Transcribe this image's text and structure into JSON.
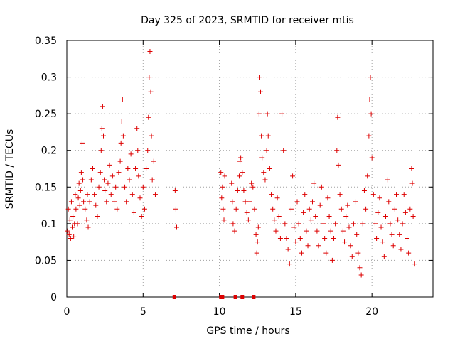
{
  "chart_data": {
    "type": "scatter",
    "title": "Day 325 of 2023, SRMTID for receiver mtis",
    "xlabel": "GPS time / hours",
    "ylabel": "SRMTID / TECUs",
    "xlim": [
      0,
      24
    ],
    "ylim": [
      0,
      0.35
    ],
    "xticks": [
      0,
      5,
      10,
      15,
      20
    ],
    "xtick_labels": [
      "0",
      "5",
      "10",
      "15",
      "20"
    ],
    "yticks": [
      0,
      0.05,
      0.1,
      0.15,
      0.2,
      0.25,
      0.3,
      0.35
    ],
    "ytick_labels": [
      "0",
      "0.05",
      "0.1",
      "0.15",
      "0.2",
      "0.25",
      "0.3",
      "0.35"
    ],
    "grid": true,
    "marker": "+",
    "color": "#dd0000",
    "series": [
      {
        "name": "SRMTID",
        "points": [
          [
            0.05,
            0.09
          ],
          [
            0.1,
            0.12
          ],
          [
            0.15,
            0.085
          ],
          [
            0.2,
            0.105
          ],
          [
            0.25,
            0.08
          ],
          [
            0.3,
            0.13
          ],
          [
            0.35,
            0.095
          ],
          [
            0.4,
            0.11
          ],
          [
            0.45,
            0.082
          ],
          [
            0.5,
            0.1
          ],
          [
            0.55,
            0.14
          ],
          [
            0.6,
            0.12
          ],
          [
            0.7,
            0.1
          ],
          [
            0.75,
            0.135
          ],
          [
            0.8,
            0.155
          ],
          [
            0.85,
            0.125
          ],
          [
            0.9,
            0.145
          ],
          [
            0.95,
            0.17
          ],
          [
            1.0,
            0.21
          ],
          [
            1.05,
            0.16
          ],
          [
            1.1,
            0.13
          ],
          [
            1.2,
            0.12
          ],
          [
            1.3,
            0.105
          ],
          [
            1.35,
            0.14
          ],
          [
            1.4,
            0.095
          ],
          [
            1.5,
            0.13
          ],
          [
            1.6,
            0.16
          ],
          [
            1.7,
            0.175
          ],
          [
            1.8,
            0.14
          ],
          [
            1.9,
            0.125
          ],
          [
            2.0,
            0.11
          ],
          [
            2.1,
            0.15
          ],
          [
            2.2,
            0.17
          ],
          [
            2.25,
            0.2
          ],
          [
            2.3,
            0.23
          ],
          [
            2.35,
            0.26
          ],
          [
            2.4,
            0.22
          ],
          [
            2.45,
            0.16
          ],
          [
            2.5,
            0.145
          ],
          [
            2.6,
            0.13
          ],
          [
            2.7,
            0.155
          ],
          [
            2.8,
            0.18
          ],
          [
            2.9,
            0.14
          ],
          [
            3.0,
            0.165
          ],
          [
            3.1,
            0.13
          ],
          [
            3.2,
            0.15
          ],
          [
            3.3,
            0.12
          ],
          [
            3.4,
            0.17
          ],
          [
            3.5,
            0.185
          ],
          [
            3.55,
            0.21
          ],
          [
            3.6,
            0.24
          ],
          [
            3.65,
            0.27
          ],
          [
            3.7,
            0.22
          ],
          [
            3.8,
            0.15
          ],
          [
            3.9,
            0.13
          ],
          [
            4.0,
            0.175
          ],
          [
            4.1,
            0.16
          ],
          [
            4.2,
            0.195
          ],
          [
            4.3,
            0.14
          ],
          [
            4.4,
            0.115
          ],
          [
            4.5,
            0.175
          ],
          [
            4.6,
            0.23
          ],
          [
            4.65,
            0.2
          ],
          [
            4.7,
            0.165
          ],
          [
            4.8,
            0.135
          ],
          [
            4.9,
            0.11
          ],
          [
            5.0,
            0.15
          ],
          [
            5.1,
            0.12
          ],
          [
            5.2,
            0.175
          ],
          [
            5.3,
            0.2
          ],
          [
            5.35,
            0.245
          ],
          [
            5.4,
            0.3
          ],
          [
            5.45,
            0.335
          ],
          [
            5.5,
            0.28
          ],
          [
            5.55,
            0.22
          ],
          [
            5.6,
            0.16
          ],
          [
            5.7,
            0.185
          ],
          [
            5.8,
            0.14
          ],
          [
            7.1,
            0.145
          ],
          [
            7.15,
            0.12
          ],
          [
            7.2,
            0.095
          ],
          [
            10.1,
            0.17
          ],
          [
            10.15,
            0.135
          ],
          [
            10.2,
            0.15
          ],
          [
            10.25,
            0.12
          ],
          [
            10.3,
            0.105
          ],
          [
            10.35,
            0.165
          ],
          [
            10.8,
            0.155
          ],
          [
            10.85,
            0.13
          ],
          [
            10.9,
            0.1
          ],
          [
            11.0,
            0.09
          ],
          [
            11.1,
            0.12
          ],
          [
            11.2,
            0.145
          ],
          [
            11.3,
            0.165
          ],
          [
            11.35,
            0.185
          ],
          [
            11.4,
            0.19
          ],
          [
            11.5,
            0.17
          ],
          [
            11.6,
            0.145
          ],
          [
            11.7,
            0.13
          ],
          [
            11.8,
            0.115
          ],
          [
            11.9,
            0.105
          ],
          [
            12.0,
            0.13
          ],
          [
            12.1,
            0.155
          ],
          [
            12.2,
            0.15
          ],
          [
            12.3,
            0.12
          ],
          [
            12.4,
            0.085
          ],
          [
            12.45,
            0.06
          ],
          [
            12.5,
            0.075
          ],
          [
            12.55,
            0.095
          ],
          [
            12.6,
            0.25
          ],
          [
            12.65,
            0.3
          ],
          [
            12.7,
            0.28
          ],
          [
            12.75,
            0.22
          ],
          [
            12.8,
            0.19
          ],
          [
            12.9,
            0.17
          ],
          [
            13.0,
            0.16
          ],
          [
            13.1,
            0.2
          ],
          [
            13.15,
            0.25
          ],
          [
            13.2,
            0.22
          ],
          [
            13.3,
            0.175
          ],
          [
            13.4,
            0.14
          ],
          [
            13.5,
            0.12
          ],
          [
            13.6,
            0.105
          ],
          [
            13.7,
            0.09
          ],
          [
            13.8,
            0.135
          ],
          [
            13.9,
            0.11
          ],
          [
            14.0,
            0.08
          ],
          [
            14.1,
            0.25
          ],
          [
            14.2,
            0.2
          ],
          [
            14.3,
            0.1
          ],
          [
            14.4,
            0.08
          ],
          [
            14.5,
            0.065
          ],
          [
            14.6,
            0.045
          ],
          [
            14.7,
            0.12
          ],
          [
            14.8,
            0.165
          ],
          [
            14.9,
            0.095
          ],
          [
            15.0,
            0.075
          ],
          [
            15.1,
            0.13
          ],
          [
            15.2,
            0.1
          ],
          [
            15.3,
            0.08
          ],
          [
            15.4,
            0.06
          ],
          [
            15.5,
            0.115
          ],
          [
            15.6,
            0.14
          ],
          [
            15.7,
            0.09
          ],
          [
            15.8,
            0.07
          ],
          [
            15.9,
            0.12
          ],
          [
            16.0,
            0.105
          ],
          [
            16.1,
            0.13
          ],
          [
            16.2,
            0.155
          ],
          [
            16.3,
            0.11
          ],
          [
            16.4,
            0.09
          ],
          [
            16.5,
            0.07
          ],
          [
            16.6,
            0.125
          ],
          [
            16.7,
            0.15
          ],
          [
            16.8,
            0.1
          ],
          [
            16.9,
            0.08
          ],
          [
            17.0,
            0.06
          ],
          [
            17.1,
            0.135
          ],
          [
            17.2,
            0.11
          ],
          [
            17.3,
            0.09
          ],
          [
            17.4,
            0.05
          ],
          [
            17.5,
            0.08
          ],
          [
            17.6,
            0.1
          ],
          [
            17.7,
            0.2
          ],
          [
            17.75,
            0.245
          ],
          [
            17.8,
            0.18
          ],
          [
            17.9,
            0.14
          ],
          [
            18.0,
            0.12
          ],
          [
            18.1,
            0.09
          ],
          [
            18.2,
            0.075
          ],
          [
            18.3,
            0.11
          ],
          [
            18.4,
            0.125
          ],
          [
            18.5,
            0.095
          ],
          [
            18.6,
            0.07
          ],
          [
            18.7,
            0.055
          ],
          [
            18.8,
            0.1
          ],
          [
            18.9,
            0.13
          ],
          [
            19.0,
            0.085
          ],
          [
            19.1,
            0.06
          ],
          [
            19.2,
            0.04
          ],
          [
            19.3,
            0.03
          ],
          [
            19.4,
            0.1
          ],
          [
            19.5,
            0.145
          ],
          [
            19.6,
            0.12
          ],
          [
            19.7,
            0.165
          ],
          [
            19.8,
            0.22
          ],
          [
            19.85,
            0.27
          ],
          [
            19.9,
            0.3
          ],
          [
            19.95,
            0.25
          ],
          [
            20.0,
            0.19
          ],
          [
            20.1,
            0.14
          ],
          [
            20.2,
            0.1
          ],
          [
            20.3,
            0.08
          ],
          [
            20.4,
            0.115
          ],
          [
            20.5,
            0.135
          ],
          [
            20.6,
            0.095
          ],
          [
            20.7,
            0.075
          ],
          [
            20.8,
            0.055
          ],
          [
            20.9,
            0.11
          ],
          [
            21.0,
            0.16
          ],
          [
            21.1,
            0.13
          ],
          [
            21.2,
            0.1
          ],
          [
            21.3,
            0.085
          ],
          [
            21.4,
            0.07
          ],
          [
            21.5,
            0.12
          ],
          [
            21.6,
            0.14
          ],
          [
            21.7,
            0.105
          ],
          [
            21.8,
            0.085
          ],
          [
            21.9,
            0.065
          ],
          [
            22.0,
            0.1
          ],
          [
            22.1,
            0.14
          ],
          [
            22.2,
            0.115
          ],
          [
            22.3,
            0.08
          ],
          [
            22.4,
            0.06
          ],
          [
            22.5,
            0.12
          ],
          [
            22.6,
            0.175
          ],
          [
            22.65,
            0.155
          ],
          [
            22.7,
            0.11
          ],
          [
            22.8,
            0.045
          ]
        ]
      },
      {
        "name": "zero",
        "marker": "square",
        "points": [
          [
            7.05,
            0
          ],
          [
            10.1,
            0
          ],
          [
            10.2,
            0
          ],
          [
            11.05,
            0
          ],
          [
            11.5,
            0
          ],
          [
            12.25,
            0
          ]
        ]
      }
    ]
  }
}
